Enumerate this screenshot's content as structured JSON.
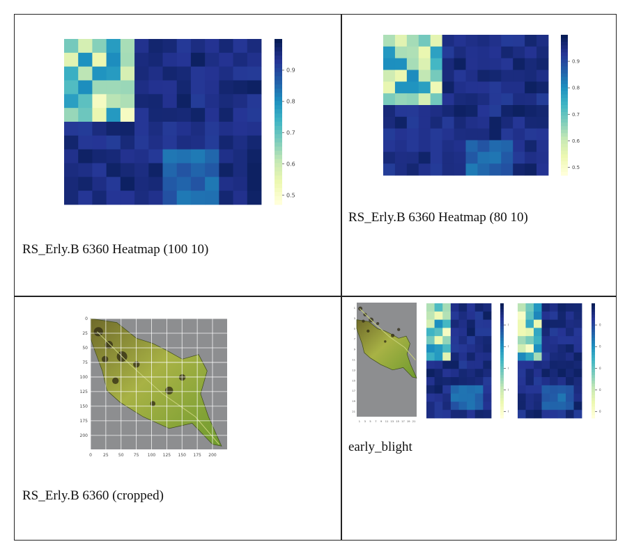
{
  "captions": {
    "top_left": "RS_Erly.B 6360 Heatmap (100 10)",
    "top_right": "RS_Erly.B 6360 Heatmap (80 10)",
    "bottom_left": "RS_Erly.B 6360 (cropped)",
    "bottom_right": "early_blight"
  },
  "colorbar": {
    "colormap": "YlGnBu",
    "ticks": [
      "0.9",
      "0.8",
      "0.7",
      "0.6",
      "0.5"
    ],
    "tick_values": [
      0.9,
      0.8,
      0.7,
      0.6,
      0.5
    ],
    "range": [
      0.47,
      1.0
    ]
  },
  "leaf_plot": {
    "x_ticks": [
      "0",
      "25",
      "50",
      "75",
      "100",
      "125",
      "150",
      "175",
      "200"
    ],
    "y_ticks": [
      "0",
      "25",
      "50",
      "75",
      "100",
      "125",
      "150",
      "175",
      "200"
    ],
    "x_values": [
      0,
      25,
      50,
      75,
      100,
      125,
      150,
      175,
      200
    ],
    "y_values": [
      0,
      25,
      50,
      75,
      100,
      125,
      150,
      175,
      200
    ],
    "range": [
      0,
      224
    ]
  },
  "small_leaf_plot": {
    "x_ticks": [
      "1",
      "3",
      "5",
      "7",
      "9",
      "11",
      "13",
      "15",
      "17",
      "19",
      "21"
    ],
    "y_ticks": [
      "1",
      "3",
      "5",
      "7",
      "9",
      "11",
      "13",
      "15",
      "17",
      "19",
      "21"
    ]
  },
  "colors": {
    "border": "#222222",
    "heatmap_dark": "#081d58",
    "heatmap_light": "#ffffd9"
  }
}
